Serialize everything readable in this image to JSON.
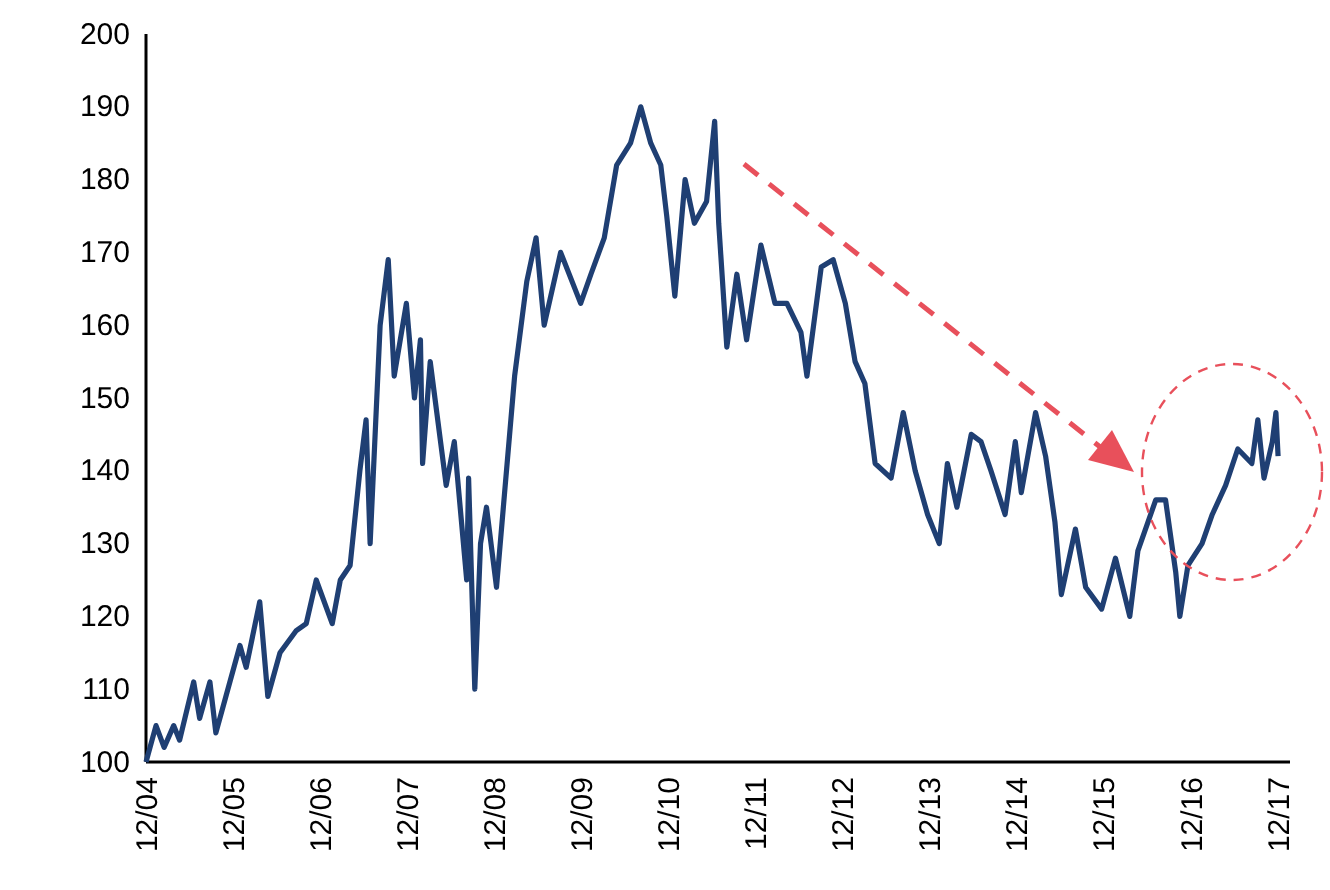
{
  "chart_data": {
    "type": "line",
    "x": [
      "2004-12-01",
      "2005-01-12",
      "2005-02-15",
      "2005-03-27",
      "2005-04-21",
      "2005-06-19",
      "2005-07-14",
      "2005-08-26",
      "2005-09-20",
      "2005-11-01",
      "2005-12-30",
      "2006-01-25",
      "2006-03-23",
      "2006-04-26",
      "2006-06-16",
      "2006-08-22",
      "2006-10-04",
      "2006-11-15",
      "2007-01-21",
      "2007-02-24",
      "2007-04-06",
      "2007-05-17",
      "2007-06-12",
      "2007-06-29",
      "2007-08-10",
      "2007-09-13",
      "2007-10-08",
      "2007-11-28",
      "2008-01-01",
      "2008-01-26",
      "2008-02-04",
      "2008-03-07",
      "2008-05-13",
      "2008-06-16",
      "2008-08-07",
      "2008-08-15",
      "2008-09-10",
      "2008-10-04",
      "2008-10-29",
      "2008-12-10",
      "2009-01-13",
      "2009-02-24",
      "2009-04-16",
      "2009-05-25",
      "2009-06-28",
      "2009-09-05",
      "2009-11-28",
      "2010-01-10",
      "2010-03-07",
      "2010-04-28",
      "2010-06-25",
      "2010-08-07",
      "2010-09-18",
      "2010-10-30",
      "2010-11-24",
      "2010-12-28",
      "2011-02-09",
      "2011-03-20",
      "2011-05-10",
      "2011-06-13",
      "2011-06-30",
      "2011-08-03",
      "2011-09-14",
      "2011-10-25",
      "2011-12-24",
      "2012-02-21",
      "2012-04-11",
      "2012-06-09",
      "2012-07-04",
      "2012-09-02",
      "2012-10-22",
      "2012-12-12",
      "2013-01-22",
      "2013-03-04",
      "2013-04-16",
      "2013-06-22",
      "2013-08-12",
      "2013-10-01",
      "2013-11-22",
      "2014-01-10",
      "2014-02-13",
      "2014-03-25",
      "2014-05-24",
      "2014-07-04",
      "2014-08-15",
      "2014-10-13",
      "2014-11-25",
      "2014-12-20",
      "2015-02-18",
      "2015-04-01",
      "2015-05-10",
      "2015-06-06",
      "2015-08-04",
      "2015-09-16",
      "2015-11-22",
      "2016-01-19",
      "2016-03-19",
      "2016-04-22",
      "2016-07-06",
      "2016-08-16",
      "2016-09-28",
      "2016-10-15",
      "2016-11-18",
      "2017-01-16",
      "2017-02-28",
      "2017-04-25",
      "2017-06-15",
      "2017-08-13",
      "2017-09-07",
      "2017-10-03",
      "2017-11-07",
      "2017-11-22",
      "2017-12-01"
    ],
    "series": [
      {
        "color": "#1f3f73",
        "values": [
          100,
          105,
          102,
          105,
          103,
          111,
          106,
          111,
          104,
          109,
          116,
          113,
          122,
          109,
          115,
          118,
          119,
          125,
          119,
          125,
          127,
          140,
          147,
          130,
          160,
          169,
          153,
          163,
          150,
          158,
          141,
          155,
          138,
          144,
          125,
          139,
          110,
          130,
          135,
          124,
          137,
          153,
          166,
          172,
          160,
          170,
          163,
          167,
          172,
          182,
          185,
          190,
          185,
          182,
          175,
          164,
          180,
          174,
          177,
          188,
          174,
          157,
          167,
          158,
          171,
          163,
          163,
          159,
          153,
          168,
          169,
          163,
          155,
          152,
          141,
          139,
          148,
          140,
          134,
          130,
          141,
          135,
          145,
          144,
          140,
          134,
          144,
          137,
          148,
          142,
          133,
          123,
          132,
          124,
          121,
          128,
          120,
          129,
          136,
          136,
          126,
          120,
          127,
          130,
          134,
          138,
          143,
          141,
          147,
          139,
          144,
          148,
          142
        ]
      }
    ],
    "xlim": [
      "2004-12-01",
      "2018-01-20"
    ],
    "xticks": [
      {
        "value": "2004-12-01",
        "label": "12/04"
      },
      {
        "value": "2005-12-01",
        "label": "12/05"
      },
      {
        "value": "2006-12-01",
        "label": "12/06"
      },
      {
        "value": "2007-12-01",
        "label": "12/07"
      },
      {
        "value": "2008-12-01",
        "label": "12/08"
      },
      {
        "value": "2009-12-01",
        "label": "12/09"
      },
      {
        "value": "2010-12-01",
        "label": "12/10"
      },
      {
        "value": "2011-12-01",
        "label": "12/11"
      },
      {
        "value": "2012-12-01",
        "label": "12/12"
      },
      {
        "value": "2013-12-01",
        "label": "12/13"
      },
      {
        "value": "2014-12-01",
        "label": "12/14"
      },
      {
        "value": "2015-12-01",
        "label": "12/15"
      },
      {
        "value": "2016-12-01",
        "label": "12/16"
      },
      {
        "value": "2017-12-01",
        "label": "12/17"
      }
    ],
    "ylim": [
      100,
      200
    ],
    "yticks": [
      100,
      110,
      120,
      130,
      140,
      150,
      160,
      170,
      180,
      190,
      200
    ],
    "marker": "none",
    "line_style": "solid"
  }
}
